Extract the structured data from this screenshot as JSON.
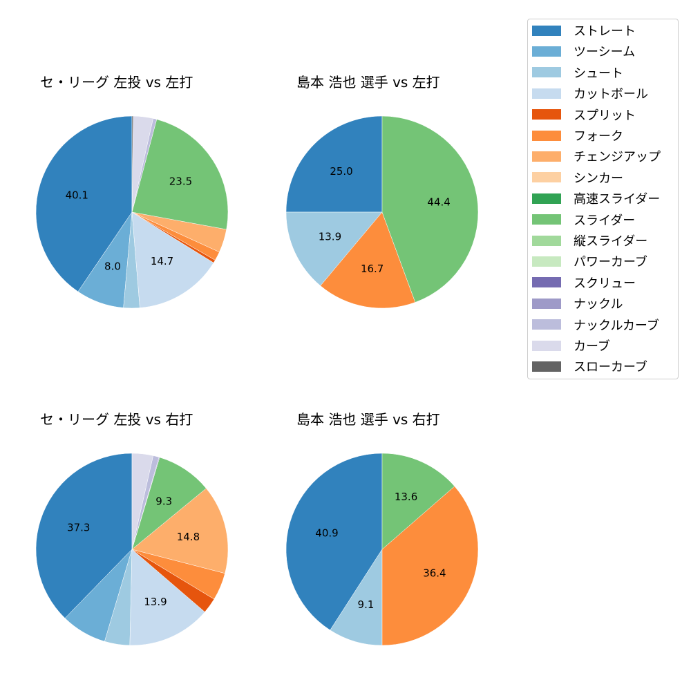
{
  "chart_data": [
    {
      "type": "pie",
      "title": "セ・リーグ 左投 vs 左打",
      "categories": [
        "ストレート",
        "ツーシーム",
        "シュート",
        "カットボール",
        "スプリット",
        "フォーク",
        "チェンジアップ",
        "スライダー",
        "ナックルカーブ",
        "カーブ",
        "スローカーブ"
      ],
      "values": [
        40.1,
        8.0,
        2.7,
        14.7,
        0.5,
        1.5,
        3.9,
        23.5,
        0.6,
        3.3,
        0.2
      ],
      "labels_shown": [
        "40.1",
        "8.0",
        "",
        "14.7",
        "",
        "",
        "",
        "23.5",
        "",
        "",
        ""
      ],
      "colors": [
        "#3182bd",
        "#6baed6",
        "#9ecae1",
        "#c6dbef",
        "#e6550d",
        "#fd8d3c",
        "#fdae6b",
        "#74c476",
        "#bcbddc",
        "#dadaeb",
        "#636363"
      ]
    },
    {
      "type": "pie",
      "title": "島本 浩也 選手 vs 左打",
      "categories": [
        "ストレート",
        "シュート",
        "フォーク",
        "スライダー"
      ],
      "values": [
        25.0,
        13.9,
        16.7,
        44.4
      ],
      "labels_shown": [
        "25.0",
        "13.9",
        "16.7",
        "44.4"
      ],
      "colors": [
        "#3182bd",
        "#9ecae1",
        "#fd8d3c",
        "#74c476"
      ]
    },
    {
      "type": "pie",
      "title": "セ・リーグ 左投 vs 右打",
      "categories": [
        "ストレート",
        "ツーシーム",
        "シュート",
        "カットボール",
        "スプリット",
        "フォーク",
        "チェンジアップ",
        "スライダー",
        "スクリュー",
        "ナックルカーブ",
        "カーブ"
      ],
      "values": [
        37.3,
        7.6,
        4.2,
        13.9,
        2.6,
        4.6,
        14.8,
        9.3,
        0.1,
        1.0,
        3.5
      ],
      "labels_shown": [
        "37.3",
        "",
        "",
        "13.9",
        "",
        "",
        "14.8",
        "9.3",
        "",
        "",
        ""
      ],
      "colors": [
        "#3182bd",
        "#6baed6",
        "#9ecae1",
        "#c6dbef",
        "#e6550d",
        "#fd8d3c",
        "#fdae6b",
        "#74c476",
        "#756bb1",
        "#bcbddc",
        "#dadaeb"
      ]
    },
    {
      "type": "pie",
      "title": "島本 浩也 選手 vs 右打",
      "categories": [
        "ストレート",
        "シュート",
        "フォーク",
        "スライダー"
      ],
      "values": [
        40.9,
        9.1,
        36.4,
        13.6
      ],
      "labels_shown": [
        "40.9",
        "9.1",
        "36.4",
        "13.6"
      ],
      "colors": [
        "#3182bd",
        "#9ecae1",
        "#fd8d3c",
        "#74c476"
      ]
    }
  ],
  "legend": {
    "items": [
      {
        "label": "ストレート",
        "color": "#3182bd"
      },
      {
        "label": "ツーシーム",
        "color": "#6baed6"
      },
      {
        "label": "シュート",
        "color": "#9ecae1"
      },
      {
        "label": "カットボール",
        "color": "#c6dbef"
      },
      {
        "label": "スプリット",
        "color": "#e6550d"
      },
      {
        "label": "フォーク",
        "color": "#fd8d3c"
      },
      {
        "label": "チェンジアップ",
        "color": "#fdae6b"
      },
      {
        "label": "シンカー",
        "color": "#fdd0a2"
      },
      {
        "label": "高速スライダー",
        "color": "#31a354"
      },
      {
        "label": "スライダー",
        "color": "#74c476"
      },
      {
        "label": "縦スライダー",
        "color": "#a1d99b"
      },
      {
        "label": "パワーカーブ",
        "color": "#c7e9c0"
      },
      {
        "label": "スクリュー",
        "color": "#756bb1"
      },
      {
        "label": "ナックル",
        "color": "#9e9ac8"
      },
      {
        "label": "ナックルカーブ",
        "color": "#bcbddc"
      },
      {
        "label": "カーブ",
        "color": "#dadaeb"
      },
      {
        "label": "スローカーブ",
        "color": "#636363"
      }
    ]
  }
}
